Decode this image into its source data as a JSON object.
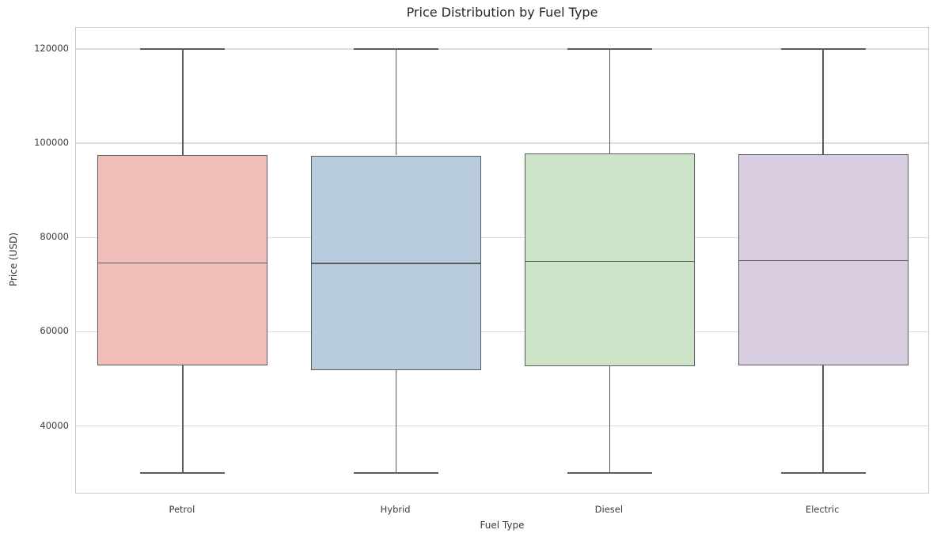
{
  "figure": {
    "title": "Price Distribution by Fuel Type",
    "xlabel": "Fuel Type",
    "ylabel": "Price (USD)"
  },
  "chart_data": {
    "type": "box",
    "title": "Price Distribution by Fuel Type",
    "xlabel": "Fuel Type",
    "ylabel": "Price (USD)",
    "categories": [
      "Petrol",
      "Hybrid",
      "Diesel",
      "Electric"
    ],
    "series": [
      {
        "name": "Petrol",
        "whisker_low": 30000,
        "q1": 52900,
        "median": 74600,
        "q3": 97500,
        "whisker_high": 120000,
        "fill_color": "#f1bdb9"
      },
      {
        "name": "Hybrid",
        "whisker_low": 30000,
        "q1": 51900,
        "median": 74500,
        "q3": 97400,
        "whisker_high": 120000,
        "fill_color": "#b7cbdd"
      },
      {
        "name": "Diesel",
        "whisker_low": 30000,
        "q1": 52700,
        "median": 74900,
        "q3": 97800,
        "whisker_high": 120000,
        "fill_color": "#cde4c8"
      },
      {
        "name": "Electric",
        "whisker_low": 30000,
        "q1": 52900,
        "median": 75100,
        "q3": 97600,
        "whisker_high": 120000,
        "fill_color": "#d9cde1"
      }
    ],
    "ylim": [
      25500,
      124500
    ],
    "yticks": [
      40000,
      60000,
      80000,
      100000,
      120000
    ],
    "grid": true,
    "legend_position": "none",
    "colors": {
      "edge": "#595d5f",
      "grid": "#dcdcdc",
      "spine": "#c9c9c9",
      "title_text": "#262626",
      "label_text": "#3a3a3a",
      "background": "#ffffff"
    }
  }
}
